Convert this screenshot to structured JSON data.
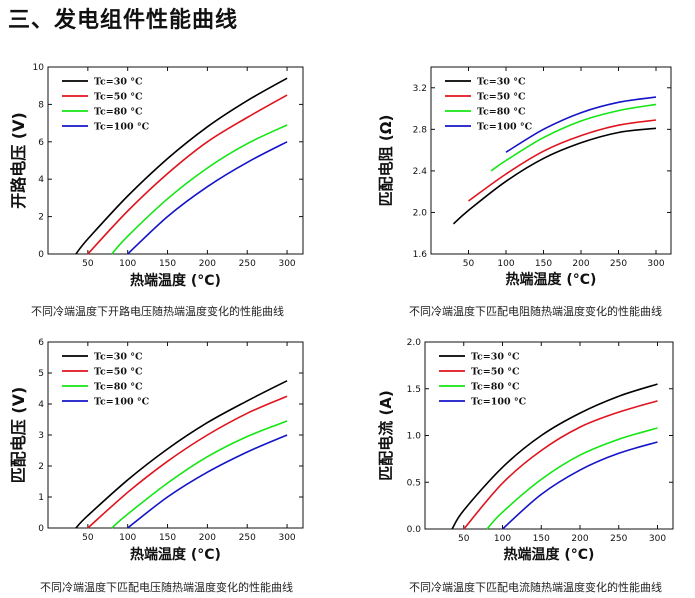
{
  "page_title": "三、发电组件性能曲线",
  "chart_data": [
    {
      "type": "line",
      "id": "oc-voltage",
      "caption": "不同冷端温度下开路电压随热端温度变化的性能曲线",
      "xlabel": "热端温度 (°C)",
      "ylabel": "开路电压 (V)",
      "xlim": [
        0,
        320
      ],
      "ylim": [
        0,
        10
      ],
      "xticks": [
        50,
        100,
        150,
        200,
        250,
        300
      ],
      "yticks": [
        0,
        2,
        4,
        6,
        8,
        10
      ],
      "ytick_labels": [
        "0",
        "2",
        "4",
        "6",
        "8",
        "10"
      ],
      "legend_position": "top-left",
      "series": [
        {
          "name": "Tc=30 °C",
          "color": "#000000",
          "x": [
            35,
            50,
            100,
            150,
            200,
            250,
            300
          ],
          "y": [
            0,
            0.8,
            3.1,
            5.1,
            6.8,
            8.2,
            9.4
          ]
        },
        {
          "name": "Tc=50 °C",
          "color": "#e0141e",
          "x": [
            50,
            100,
            150,
            200,
            250,
            300
          ],
          "y": [
            0,
            2.3,
            4.3,
            6.0,
            7.3,
            8.5
          ]
        },
        {
          "name": "Tc=80 °C",
          "color": "#14e614",
          "x": [
            80,
            100,
            150,
            200,
            250,
            300
          ],
          "y": [
            0,
            0.95,
            2.95,
            4.6,
            5.9,
            6.9
          ]
        },
        {
          "name": "Tc=100 °C",
          "color": "#1414c8",
          "x": [
            100,
            150,
            200,
            250,
            300
          ],
          "y": [
            0,
            2.0,
            3.6,
            4.9,
            6.0
          ]
        }
      ]
    },
    {
      "type": "line",
      "id": "match-resistance",
      "caption": "不同冷端温度下匹配电阻随热端温度变化的性能曲线",
      "xlabel": "热端温度 (°C)",
      "ylabel": "匹配电阻 (Ω)",
      "xlim": [
        0,
        320
      ],
      "ylim": [
        1.6,
        3.4
      ],
      "xticks": [
        50,
        100,
        150,
        200,
        250,
        300
      ],
      "yticks": [
        1.6,
        2.0,
        2.4,
        2.8,
        3.2
      ],
      "ytick_labels": [
        "1.6",
        "2.0",
        "2.4",
        "2.8",
        "3.2"
      ],
      "legend_position": "top-left",
      "series": [
        {
          "name": "Tc=30 °C",
          "color": "#000000",
          "x": [
            30,
            50,
            100,
            150,
            200,
            250,
            300
          ],
          "y": [
            1.89,
            2.02,
            2.3,
            2.52,
            2.67,
            2.77,
            2.81
          ]
        },
        {
          "name": "Tc=50 °C",
          "color": "#e0141e",
          "x": [
            50,
            100,
            150,
            200,
            250,
            300
          ],
          "y": [
            2.11,
            2.37,
            2.59,
            2.74,
            2.84,
            2.89
          ]
        },
        {
          "name": "Tc=80 °C",
          "color": "#14e614",
          "x": [
            80,
            100,
            150,
            200,
            250,
            300
          ],
          "y": [
            2.4,
            2.5,
            2.72,
            2.88,
            2.98,
            3.04
          ]
        },
        {
          "name": "Tc=100 °C",
          "color": "#1414c8",
          "x": [
            100,
            150,
            200,
            250,
            300
          ],
          "y": [
            2.58,
            2.8,
            2.96,
            3.06,
            3.11
          ]
        }
      ]
    },
    {
      "type": "line",
      "id": "match-voltage",
      "caption": "不同冷端温度下匹配电压随热端温度变化的性能曲线",
      "xlabel": "热端温度 (°C)",
      "ylabel": "匹配电压 (V)",
      "xlim": [
        0,
        320
      ],
      "ylim": [
        0,
        6
      ],
      "xticks": [
        50,
        100,
        150,
        200,
        250,
        300
      ],
      "yticks": [
        0,
        1,
        2,
        3,
        4,
        5,
        6
      ],
      "ytick_labels": [
        "0",
        "1",
        "2",
        "3",
        "4",
        "5",
        "6"
      ],
      "legend_position": "top-left",
      "series": [
        {
          "name": "Tc=30 °C",
          "color": "#000000",
          "x": [
            35,
            50,
            100,
            150,
            200,
            250,
            300
          ],
          "y": [
            0,
            0.4,
            1.55,
            2.55,
            3.4,
            4.1,
            4.75
          ]
        },
        {
          "name": "Tc=50 °C",
          "color": "#e0141e",
          "x": [
            50,
            100,
            150,
            200,
            250,
            300
          ],
          "y": [
            0,
            1.15,
            2.15,
            3.0,
            3.7,
            4.25
          ]
        },
        {
          "name": "Tc=80 °C",
          "color": "#14e614",
          "x": [
            80,
            100,
            150,
            200,
            250,
            300
          ],
          "y": [
            0,
            0.45,
            1.45,
            2.3,
            2.95,
            3.45
          ]
        },
        {
          "name": "Tc=100 °C",
          "color": "#1414c8",
          "x": [
            100,
            150,
            200,
            250,
            300
          ],
          "y": [
            0,
            1.0,
            1.8,
            2.45,
            3.0
          ]
        }
      ]
    },
    {
      "type": "line",
      "id": "match-current",
      "caption": "不同冷端温度下匹配电流随热端温度变化的性能曲线",
      "xlabel": "热端温度 (°C)",
      "ylabel": "匹配电流 (A)",
      "xlim": [
        0,
        320
      ],
      "ylim": [
        0,
        2.0
      ],
      "xticks": [
        50,
        100,
        150,
        200,
        250,
        300
      ],
      "yticks": [
        0,
        0.5,
        1.0,
        1.5,
        2.0
      ],
      "ytick_labels": [
        "0.0",
        "0.5",
        "1.0",
        "1.5",
        "2.0"
      ],
      "legend_position": "top-left",
      "series": [
        {
          "name": "Tc=30 °C",
          "color": "#000000",
          "x": [
            35,
            50,
            100,
            150,
            200,
            250,
            300
          ],
          "y": [
            0,
            0.2,
            0.66,
            1.0,
            1.24,
            1.42,
            1.55
          ]
        },
        {
          "name": "Tc=50 °C",
          "color": "#e0141e",
          "x": [
            50,
            100,
            150,
            200,
            250,
            300
          ],
          "y": [
            0,
            0.49,
            0.84,
            1.09,
            1.25,
            1.37
          ]
        },
        {
          "name": "Tc=80 °C",
          "color": "#14e614",
          "x": [
            80,
            100,
            150,
            200,
            250,
            300
          ],
          "y": [
            0,
            0.18,
            0.53,
            0.79,
            0.96,
            1.08
          ]
        },
        {
          "name": "Tc=100 °C",
          "color": "#1414c8",
          "x": [
            100,
            150,
            200,
            250,
            300
          ],
          "y": [
            0,
            0.37,
            0.63,
            0.81,
            0.93
          ]
        }
      ]
    }
  ]
}
